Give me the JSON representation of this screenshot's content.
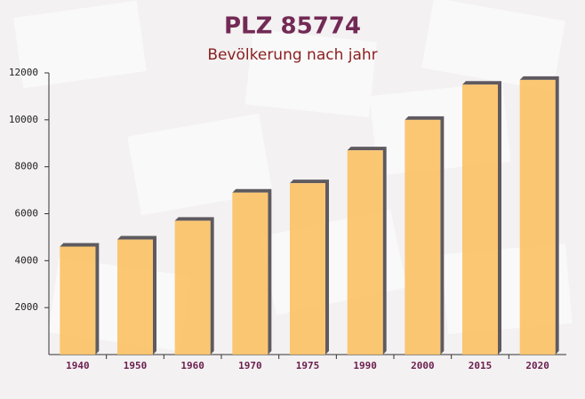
{
  "chart_data": {
    "type": "bar",
    "title": "PLZ 85774",
    "subtitle": "Bevölkerung nach jahr",
    "categories": [
      "1940",
      "1950",
      "1960",
      "1970",
      "1975",
      "1990",
      "2000",
      "2015",
      "2020"
    ],
    "values": [
      4600,
      4900,
      5700,
      6900,
      7300,
      8700,
      10000,
      11500,
      11700
    ],
    "color": "#fbc266",
    "ylim": [
      0,
      12000
    ],
    "yticks": [
      2000,
      4000,
      6000,
      8000,
      10000,
      12000
    ]
  }
}
